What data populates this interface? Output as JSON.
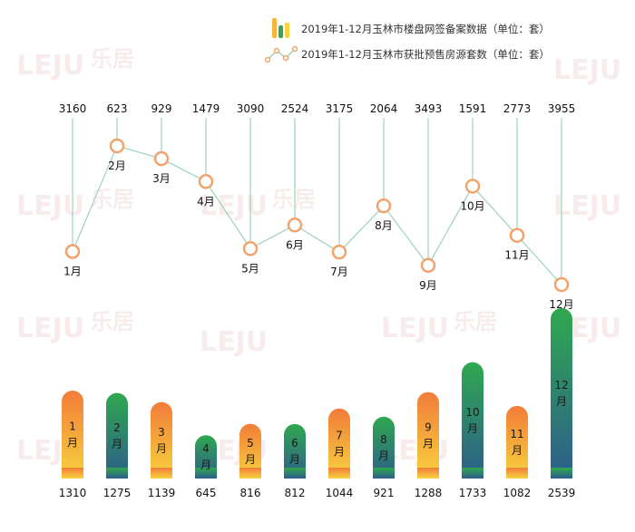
{
  "legend": {
    "bar_label": "2019年1-12月玉林市楼盘网签备案数据（单位：套）",
    "line_label": "2019年1-12月玉林市获批预售房源套数（单位：套）"
  },
  "watermark": {
    "logo_text": "LEJU",
    "brand_text": "乐居"
  },
  "colors": {
    "line": "#9cd3b8",
    "marker_stroke": "#f2a36b",
    "warm_top": "#f27c3a",
    "warm_bottom": "#f7d33c",
    "cool_top": "#2fa84f",
    "cool_bottom": "#2d5d8c",
    "label_text": "#111111"
  },
  "chart_data": [
    {
      "type": "line",
      "categories": [
        "1月",
        "2月",
        "3月",
        "4月",
        "5月",
        "6月",
        "7月",
        "8月",
        "9月",
        "10月",
        "11月",
        "12月"
      ],
      "values": [
        3160,
        623,
        929,
        1479,
        3090,
        2524,
        3175,
        2064,
        3493,
        1591,
        2773,
        3955
      ],
      "series_label_key": "legend.line_label"
    },
    {
      "type": "bar",
      "categories": [
        "1月",
        "2月",
        "3月",
        "4月",
        "5月",
        "6月",
        "7月",
        "8月",
        "9月",
        "10月",
        "11月",
        "12月"
      ],
      "values": [
        1310,
        1275,
        1139,
        645,
        816,
        812,
        1044,
        921,
        1288,
        1733,
        1082,
        2539
      ],
      "bar_styles": [
        "warm",
        "cool",
        "warm",
        "cool",
        "warm",
        "cool",
        "warm",
        "cool",
        "warm",
        "cool",
        "warm",
        "cool"
      ],
      "series_label_key": "legend.bar_label"
    }
  ]
}
